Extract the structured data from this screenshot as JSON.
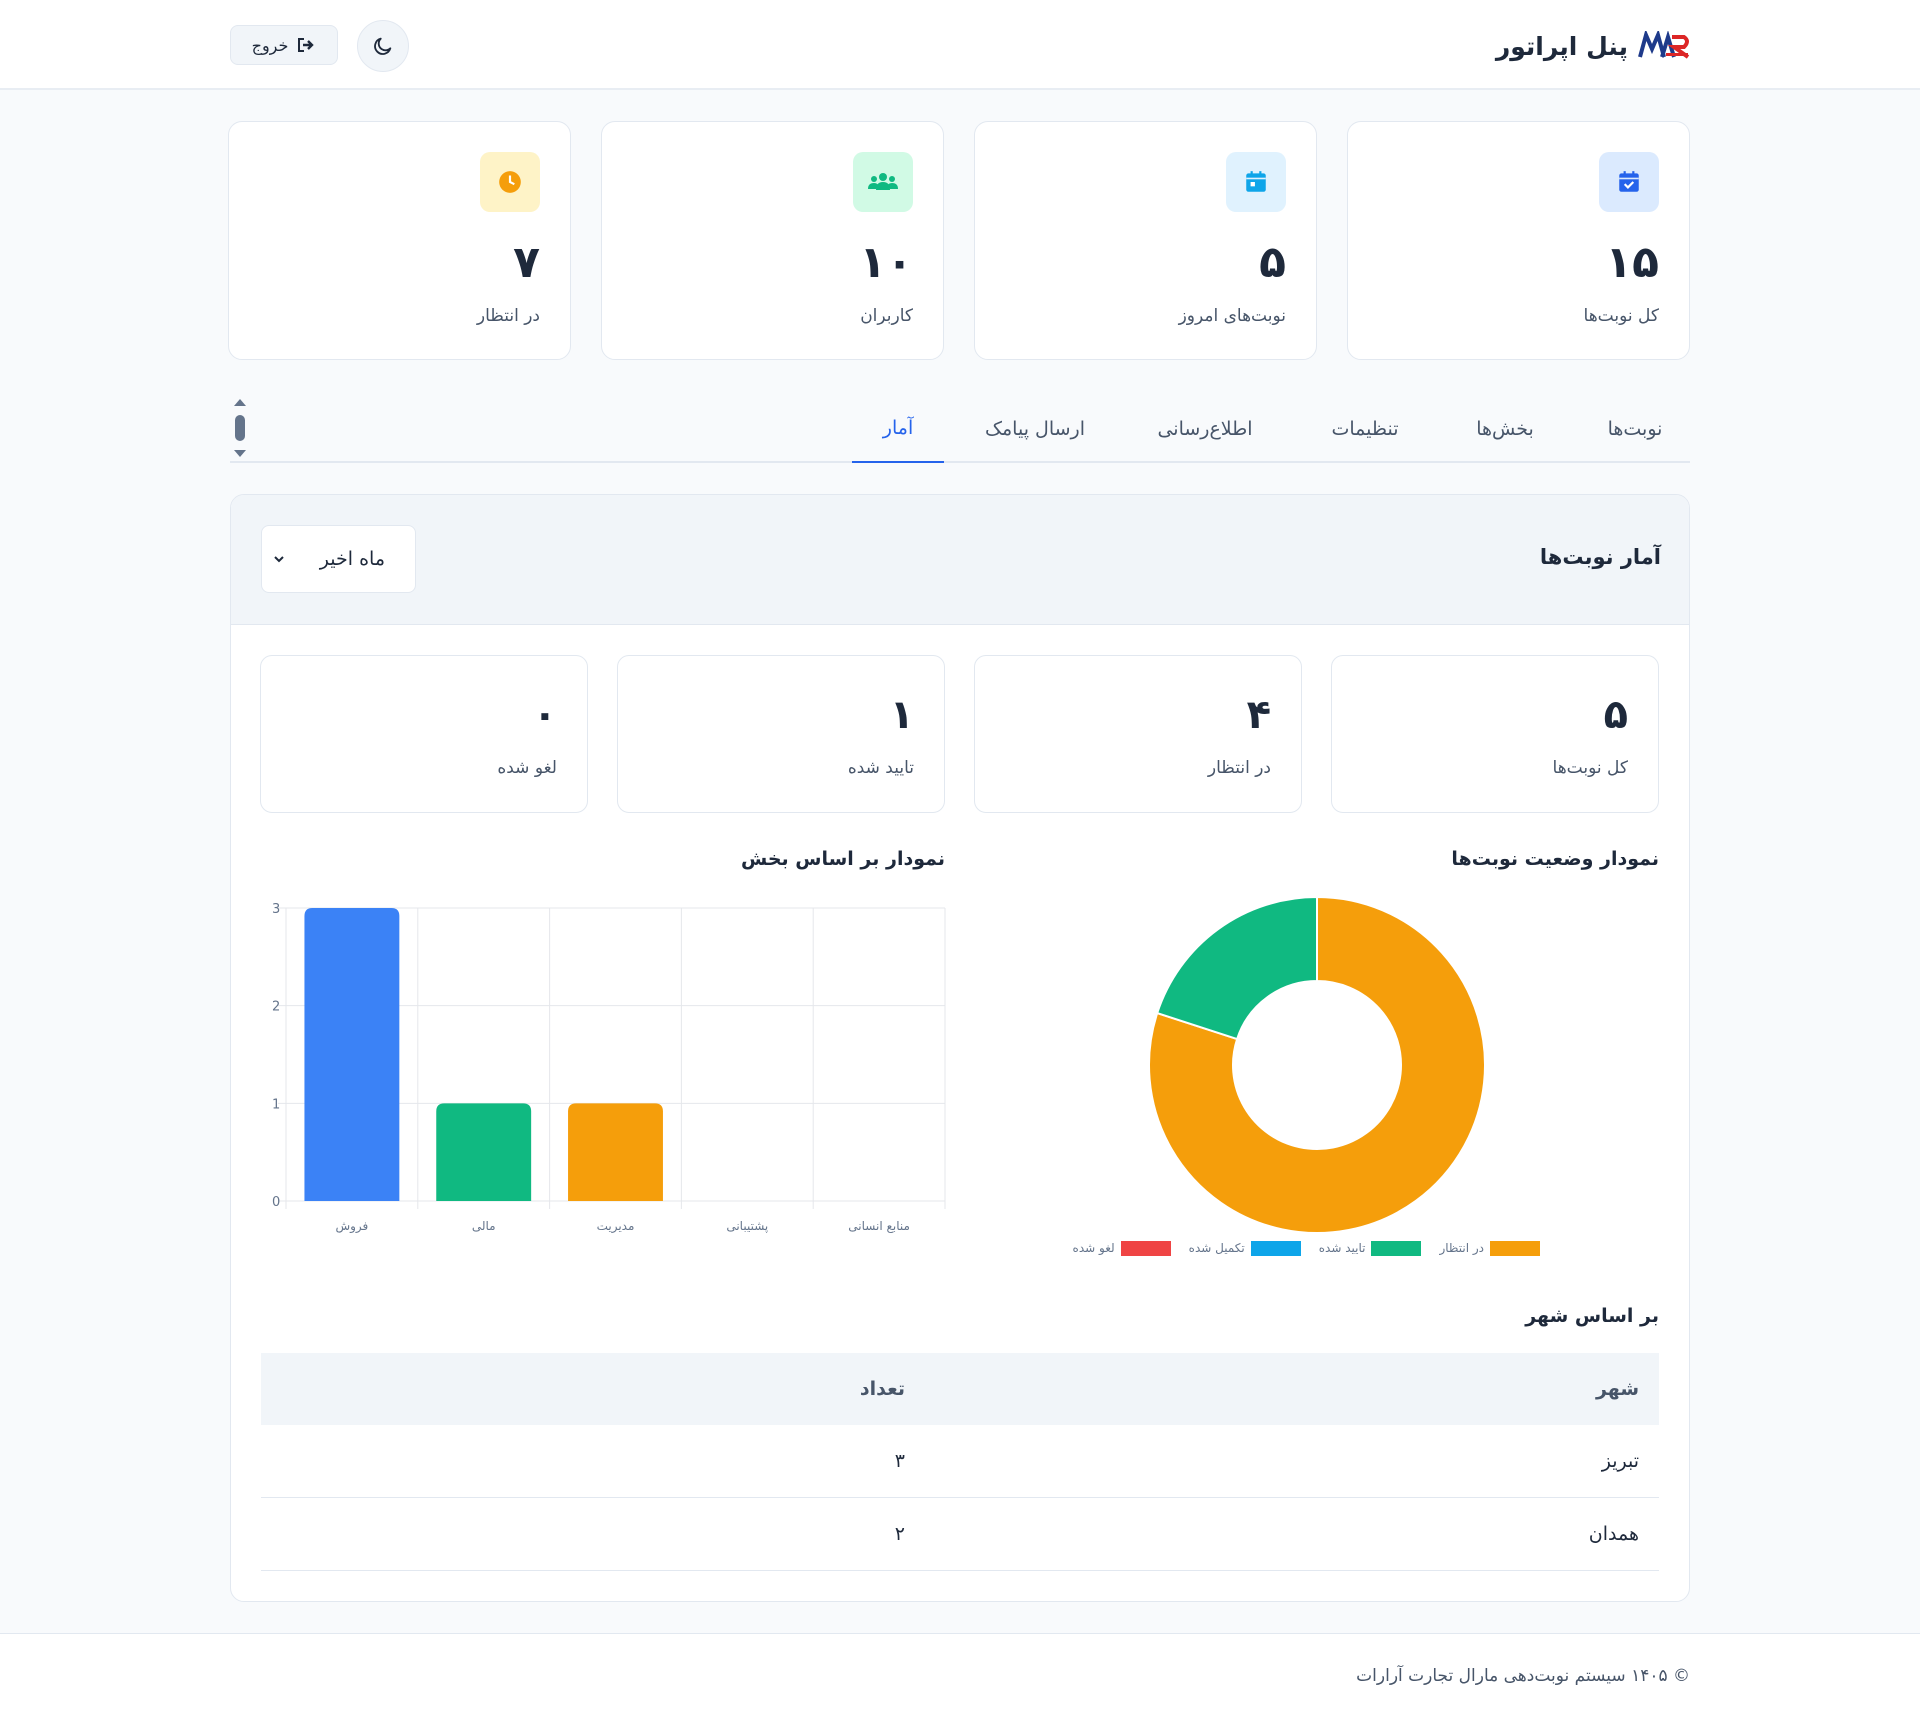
{
  "header": {
    "title": "پنل اپراتور",
    "logout_label": "خروج",
    "logo_icon": "brand-logo",
    "theme_icon": "moon-icon",
    "logout_icon": "logout-icon"
  },
  "stats": [
    {
      "value": "۱۵",
      "label": "کل نوبت‌ها",
      "icon": "calendar-check-icon",
      "color": "#2563eb",
      "bg": "#dbeafe"
    },
    {
      "value": "۵",
      "label": "نوبت‌های امروز",
      "icon": "calendar-day-icon",
      "color": "#0ea5e9",
      "bg": "#e0f2fe"
    },
    {
      "value": "۱۰",
      "label": "کاربران",
      "icon": "users-icon",
      "color": "#10b981",
      "bg": "#d1fae5"
    },
    {
      "value": "۷",
      "label": "در انتظار",
      "icon": "clock-icon",
      "color": "#f59e0b",
      "bg": "#fef3c7"
    }
  ],
  "tabs": [
    {
      "label": "نوبت‌ها",
      "active": false
    },
    {
      "label": "بخش‌ها",
      "active": false
    },
    {
      "label": "تنظیمات",
      "active": false
    },
    {
      "label": "اطلاع‌رسانی",
      "active": false
    },
    {
      "label": "ارسال پیامک",
      "active": false
    },
    {
      "label": "آمار",
      "active": true
    }
  ],
  "panel": {
    "title": "آمار نوبت‌ها",
    "period_value": "ماه اخیر"
  },
  "summary": [
    {
      "value": "۵",
      "label": "کل نوبت‌ها"
    },
    {
      "value": "۴",
      "label": "در انتظار"
    },
    {
      "value": "۱",
      "label": "تایید شده"
    },
    {
      "value": "۰",
      "label": "لغو شده"
    }
  ],
  "charts": {
    "status_title": "نمودار وضعیت نوبت‌ها",
    "department_title": "نمودار بر اساس بخش"
  },
  "chart_data": [
    {
      "type": "pie",
      "variant": "doughnut",
      "labels": [
        "در انتظار",
        "تایید شده",
        "تکمیل شده",
        "لغو شده"
      ],
      "values": [
        4,
        1,
        0,
        0
      ],
      "colors": [
        "#f59e0b",
        "#10b981",
        "#0ea5e9",
        "#ef4444"
      ],
      "legend": "bottom"
    },
    {
      "type": "bar",
      "categories": [
        "فروش",
        "مالی",
        "مدیریت",
        "پشتیبانی",
        "منابع انسانی"
      ],
      "values": [
        3,
        1,
        1,
        0,
        0
      ],
      "colors": [
        "#3b82f6",
        "#10b981",
        "#f59e0b",
        "#0ea5e9",
        "#ef4444"
      ],
      "ylim": [
        0,
        3
      ],
      "yticks": [
        0,
        1,
        2,
        3
      ],
      "grid": true
    }
  ],
  "city": {
    "title": "بر اساس شهر",
    "headers": {
      "city": "شهر",
      "count": "تعداد"
    },
    "rows": [
      {
        "city": "تبریز",
        "count": "۳"
      },
      {
        "city": "همدان",
        "count": "۲"
      }
    ]
  },
  "footer": {
    "text": "© ۱۴۰۵ سیستم نوبت‌دهی مارال تجارت آرارات"
  }
}
